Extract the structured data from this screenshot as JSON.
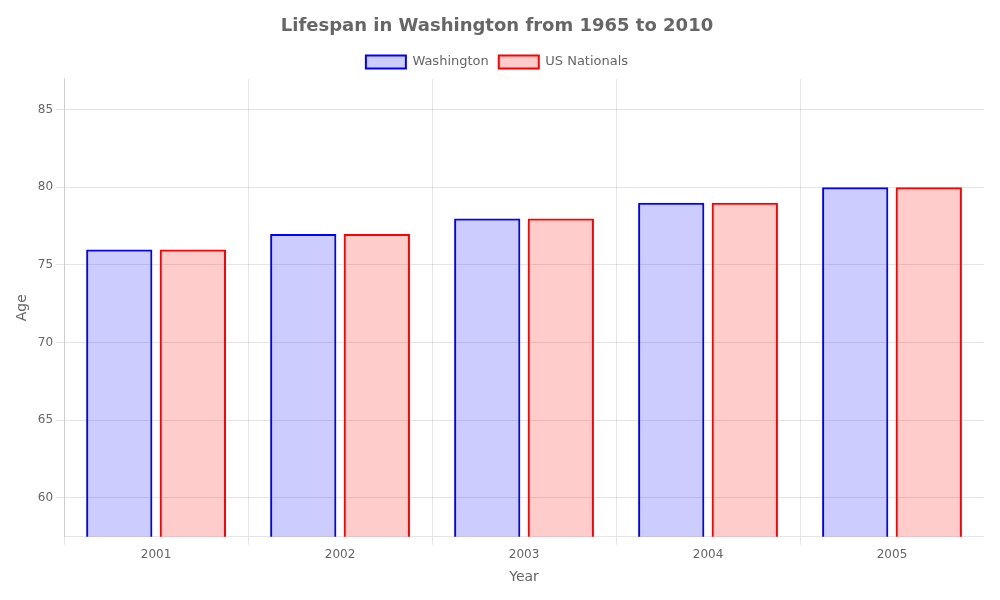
{
  "chart_data": {
    "type": "bar",
    "title": "Lifespan in Washington from 1965 to 2010",
    "x_label": "Year",
    "y_label": "Age",
    "categories": [
      "2001",
      "2002",
      "2003",
      "2004",
      "2005"
    ],
    "series": [
      {
        "name": "Washington",
        "color": "#0000ff",
        "values": [
          76,
          77,
          78,
          79,
          80
        ]
      },
      {
        "name": "US Nationals",
        "color": "#ff0000",
        "values": [
          76,
          77,
          78,
          79,
          80
        ]
      }
    ],
    "ylim": [
      57.5,
      87
    ],
    "yticks": [
      60,
      65,
      70,
      75,
      80,
      85
    ],
    "grid": true,
    "legend": "top"
  }
}
